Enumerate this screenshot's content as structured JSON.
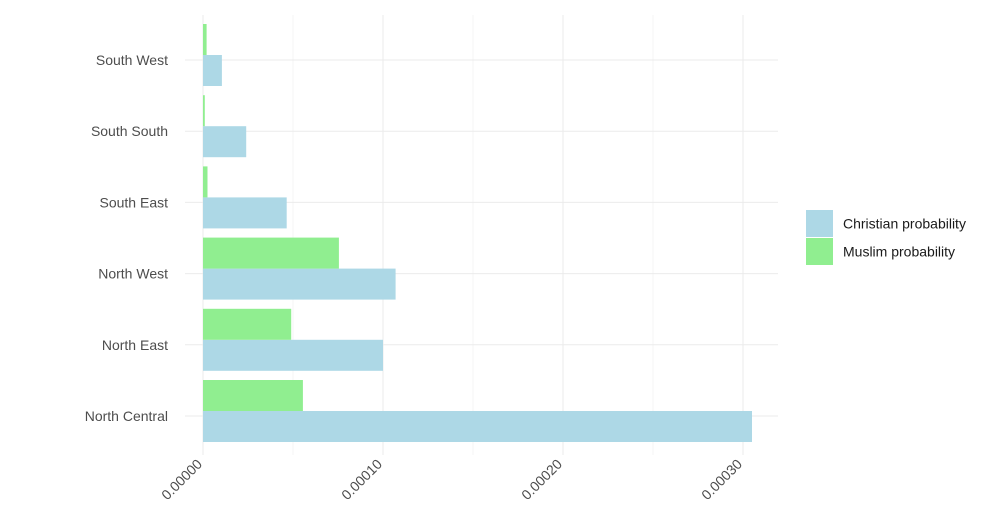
{
  "chart_data": {
    "type": "bar",
    "orientation": "horizontal",
    "categories": [
      "North Central",
      "North East",
      "North West",
      "South East",
      "South South",
      "South West"
    ],
    "series": [
      {
        "name": "Christian probability",
        "color": "#add8e6",
        "values": [
          0.000305,
          0.0001,
          0.000107,
          4.65e-05,
          2.4e-05,
          1.05e-05
        ]
      },
      {
        "name": "Muslim probability",
        "color": "#90ee90",
        "values": [
          5.55e-05,
          4.9e-05,
          7.55e-05,
          2.5e-06,
          1e-06,
          2e-06
        ]
      }
    ],
    "x_ticks": [
      "0.00000",
      "0.00010",
      "0.00020",
      "0.00030"
    ],
    "xlim": [
      0,
      0.00032
    ],
    "title": "",
    "xlabel": "",
    "ylabel": "",
    "grid": true,
    "legend_position": "right"
  }
}
